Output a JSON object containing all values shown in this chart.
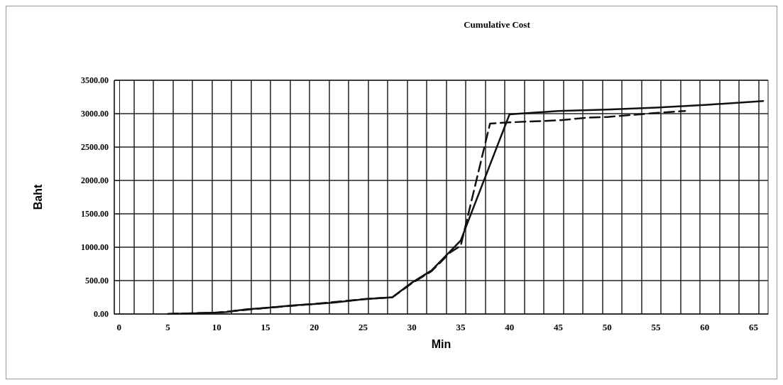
{
  "chart_data": {
    "type": "line",
    "title": "Cumulative Cost",
    "xlabel": "Min",
    "ylabel": "Baht",
    "series": [
      {
        "color": "#111111",
        "line_style": "solid",
        "x": [
          5,
          8,
          10,
          11,
          13,
          15,
          18,
          20,
          22,
          25,
          28,
          30,
          32,
          35,
          40,
          41,
          45,
          50,
          55,
          60,
          66
        ],
        "values": [
          0,
          10,
          20,
          30,
          70,
          90,
          130,
          150,
          170,
          220,
          250,
          470,
          650,
          1100,
          2990,
          3000,
          3040,
          3060,
          3090,
          3130,
          3190
        ]
      },
      {
        "color": "#111111",
        "line_style": "dashed",
        "x": [
          5,
          10,
          15,
          20,
          25,
          28,
          30,
          32,
          34,
          35,
          38,
          40,
          45,
          48,
          50,
          55,
          58
        ],
        "values": [
          0,
          20,
          90,
          150,
          220,
          250,
          460,
          640,
          930,
          1020,
          2850,
          2870,
          2900,
          2940,
          2950,
          3010,
          3040
        ]
      }
    ],
    "xlim": [
      -0.5,
      66.5
    ],
    "xticks": [
      0,
      5,
      10,
      15,
      20,
      25,
      30,
      35,
      40,
      45,
      50,
      55,
      60,
      65,
      {
        "value": -0.5,
        "label": null
      },
      {
        "value": 1.5,
        "label": null
      },
      {
        "value": 3.5,
        "label": null
      },
      {
        "value": 5.5,
        "label": null
      },
      {
        "value": 7.5,
        "label": null
      },
      {
        "value": 9.5,
        "label": null
      },
      {
        "value": 11.5,
        "label": null
      },
      {
        "value": 13.5,
        "label": null
      },
      {
        "value": 15.5,
        "label": null
      },
      {
        "value": 17.5,
        "label": null
      },
      {
        "value": 19.5,
        "label": null
      },
      {
        "value": 21.5,
        "label": null
      },
      {
        "value": 23.5,
        "label": null
      },
      {
        "value": 25.5,
        "label": null
      },
      {
        "value": 27.5,
        "label": null
      },
      {
        "value": 29.5,
        "label": null
      },
      {
        "value": 31.5,
        "label": null
      },
      {
        "value": 33.5,
        "label": null
      },
      {
        "value": 35.5,
        "label": null
      },
      {
        "value": 37.5,
        "label": null
      },
      {
        "value": 39.5,
        "label": null
      },
      {
        "value": 41.5,
        "label": null
      },
      {
        "value": 43.5,
        "label": null
      },
      {
        "value": 45.5,
        "label": null
      },
      {
        "value": 47.5,
        "label": null
      },
      {
        "value": 49.5,
        "label": null
      },
      {
        "value": 51.5,
        "label": null
      },
      {
        "value": 53.5,
        "label": null
      },
      {
        "value": 55.5,
        "label": null
      },
      {
        "value": 57.5,
        "label": null
      },
      {
        "value": 59.5,
        "label": null
      },
      {
        "value": 61.5,
        "label": null
      },
      {
        "value": 63.5,
        "label": null
      },
      {
        "value": 65.5,
        "label": null
      }
    ],
    "ylim": [
      0,
      3500
    ],
    "yticks": [
      {
        "value": 0,
        "label": "0.00"
      },
      {
        "value": 500,
        "label": "500.00"
      },
      {
        "value": 1000,
        "label": "1000.00"
      },
      {
        "value": 1500,
        "label": "1500.00"
      },
      {
        "value": 2000,
        "label": "2000.00"
      },
      {
        "value": 2500,
        "label": "2500.00"
      },
      {
        "value": 3000,
        "label": "3000.00"
      },
      {
        "value": 3500,
        "label": "3500.00"
      }
    ],
    "grid": true,
    "marker": "none"
  }
}
